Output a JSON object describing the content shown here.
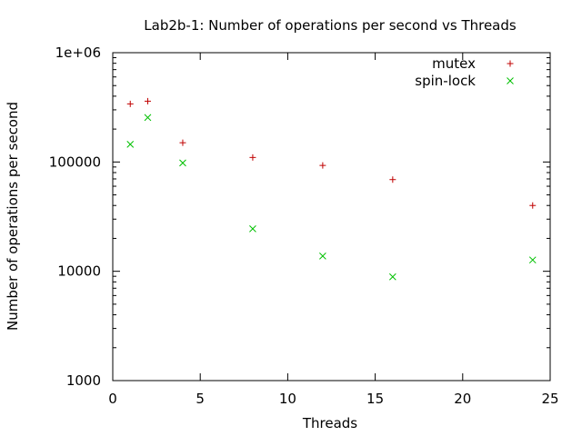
{
  "chart_data": {
    "type": "scatter",
    "title": "Lab2b-1: Number of operations per second vs Threads",
    "xlabel": "Threads",
    "ylabel": "Number of operations per second",
    "xlim": [
      0,
      25
    ],
    "ylim": [
      1000,
      1000000
    ],
    "y_scale": "log",
    "grid": false,
    "legend_position": "top-right",
    "x_ticks": [
      {
        "value": 0,
        "label": "0"
      },
      {
        "value": 5,
        "label": "5"
      },
      {
        "value": 10,
        "label": "10"
      },
      {
        "value": 15,
        "label": "15"
      },
      {
        "value": 20,
        "label": "20"
      },
      {
        "value": 25,
        "label": "25"
      }
    ],
    "y_ticks": [
      {
        "value": 1000,
        "label": "1000"
      },
      {
        "value": 10000,
        "label": "10000"
      },
      {
        "value": 100000,
        "label": "100000"
      },
      {
        "value": 1000000,
        "label": "1e+06"
      }
    ],
    "series": [
      {
        "name": "mutex",
        "marker": "plus",
        "color": "#c00000",
        "x": [
          1,
          2,
          4,
          8,
          12,
          16,
          24
        ],
        "y": [
          340000,
          360000,
          150000,
          110000,
          93000,
          69000,
          40000
        ]
      },
      {
        "name": "spin-lock",
        "marker": "cross",
        "color": "#00c000",
        "x": [
          1,
          2,
          4,
          8,
          12,
          16,
          24
        ],
        "y": [
          145000,
          255000,
          98000,
          24500,
          13800,
          8900,
          12700
        ]
      }
    ]
  }
}
